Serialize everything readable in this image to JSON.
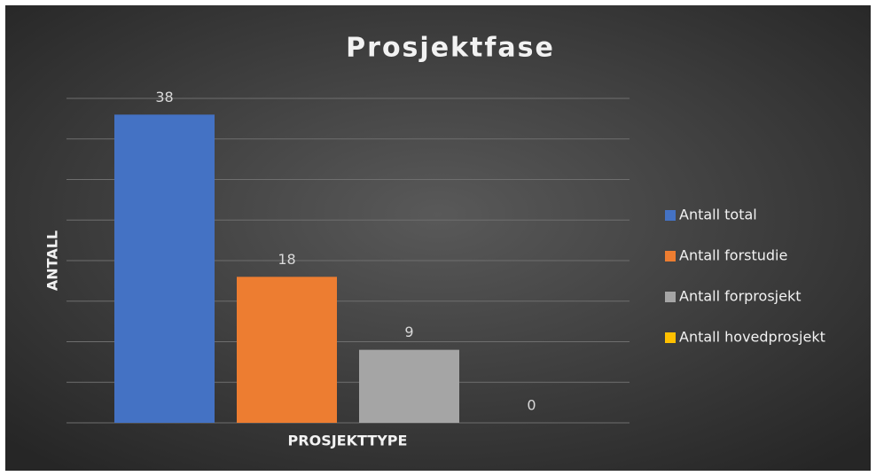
{
  "chart_data": {
    "type": "bar",
    "title": "Prosjektfase",
    "xlabel": "PROSJEKTTYPE",
    "ylabel": "ANTALL",
    "categories": [
      null
    ],
    "series": [
      {
        "name": "Antall total",
        "color": "#4472c4",
        "values": [
          38
        ]
      },
      {
        "name": "Antall forstudie",
        "color": "#ed7d31",
        "values": [
          18
        ]
      },
      {
        "name": "Antall forprosjekt",
        "color": "#a5a5a5",
        "values": [
          9
        ]
      },
      {
        "name": "Antall hovedprosjekt",
        "color": "#ffc000",
        "values": [
          0
        ]
      }
    ],
    "ylim": [
      0,
      40
    ],
    "yticks": [
      0,
      5,
      10,
      15,
      20,
      25,
      30,
      35,
      40
    ],
    "grid": true,
    "legend": "right",
    "data_labels": true
  }
}
